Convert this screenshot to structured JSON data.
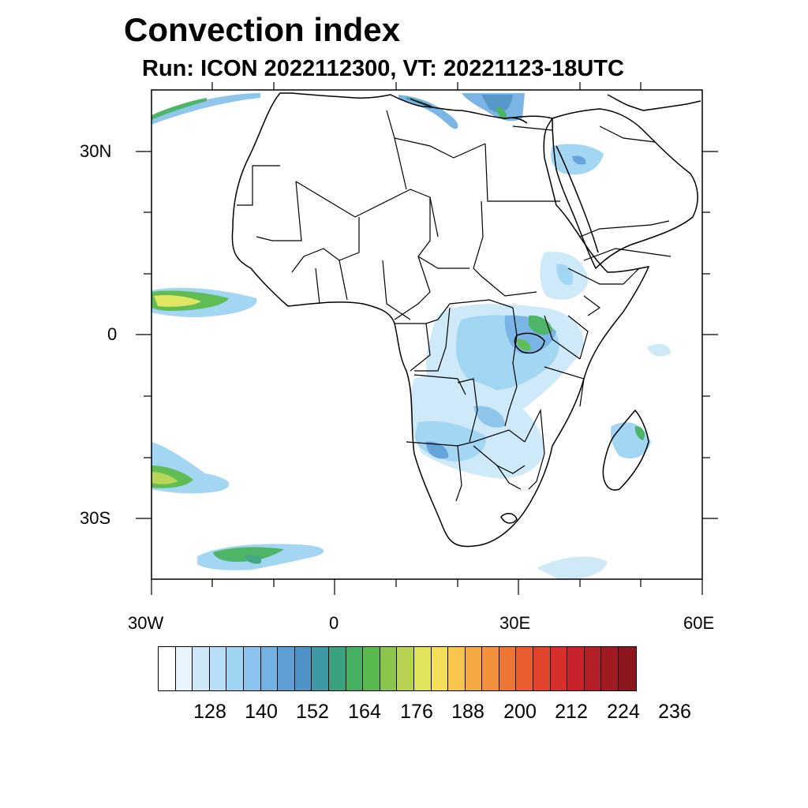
{
  "header": {
    "title": "Convection index",
    "subtitle": "Run: ICON 2022112300,  VT: 20221123-18UTC"
  },
  "axes": {
    "x_ticks": [
      "30W",
      "0",
      "30E",
      "60E"
    ],
    "y_ticks": [
      "30N",
      "0",
      "30S"
    ],
    "lon_range": [
      -30,
      60
    ],
    "lat_range": [
      -40,
      40
    ]
  },
  "colorbar": {
    "labels": [
      "128",
      "140",
      "152",
      "164",
      "176",
      "188",
      "200",
      "212",
      "224",
      "236"
    ],
    "colors": [
      "#ffffff",
      "#e8f4fb",
      "#cce8f7",
      "#b6def5",
      "#9fd4f3",
      "#8ac4ec",
      "#74b2e4",
      "#5e9fd6",
      "#4d93c6",
      "#3e99a6",
      "#3aa27e",
      "#44b060",
      "#58ba4c",
      "#8cc54c",
      "#b6d352",
      "#dfe45a",
      "#f5de5a",
      "#f8c64e",
      "#f6a844",
      "#f2903c",
      "#ee7634",
      "#e85c2e",
      "#e0442a",
      "#d62e2a",
      "#c6242a",
      "#b41e26",
      "#a01a22",
      "#8c161e"
    ]
  }
}
